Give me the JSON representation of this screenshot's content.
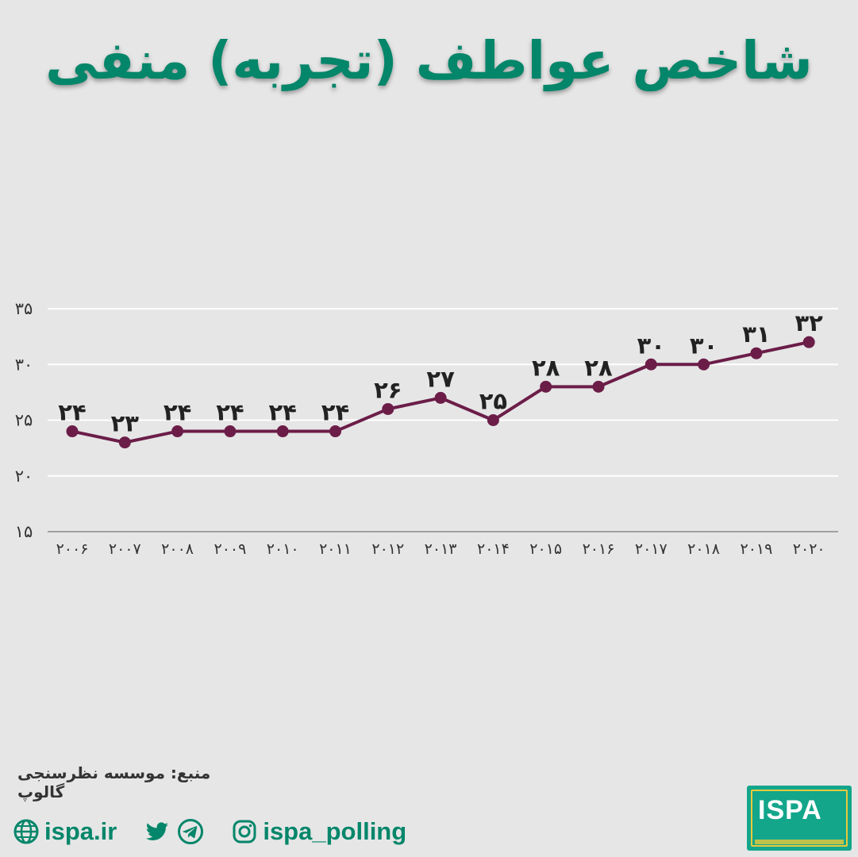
{
  "title": "شاخص عواطف (تجربه) منفی",
  "source": "منبع: موسسه نظرسنجی گالوپ",
  "social": {
    "website": "ispa.ir",
    "handle": "ispa_polling",
    "icons": [
      "globe-icon",
      "twitter-icon",
      "telegram-icon",
      "instagram-icon"
    ]
  },
  "logo": {
    "text": "ISPA"
  },
  "colors": {
    "accent": "#04866a",
    "line": "#6b1d48",
    "background": "#e6e6e6"
  },
  "chart_data": {
    "type": "line",
    "categories": [
      "2006",
      "2007",
      "2008",
      "2009",
      "2010",
      "2011",
      "2012",
      "2013",
      "2014",
      "2015",
      "2016",
      "2017",
      "2018",
      "2019",
      "2020"
    ],
    "category_labels": [
      "۲۰۰۶",
      "۲۰۰۷",
      "۲۰۰۸",
      "۲۰۰۹",
      "۲۰۱۰",
      "۲۰۱۱",
      "۲۰۱۲",
      "۲۰۱۳",
      "۲۰۱۴",
      "۲۰۱۵",
      "۲۰۱۶",
      "۲۰۱۷",
      "۲۰۱۸",
      "۲۰۱۹",
      "۲۰۲۰"
    ],
    "values": [
      24,
      23,
      24,
      24,
      24,
      24,
      26,
      27,
      25,
      28,
      28,
      30,
      30,
      31,
      32
    ],
    "value_labels": [
      "۲۴",
      "۲۳",
      "۲۴",
      "۲۴",
      "۲۴",
      "۲۴",
      "۲۶",
      "۲۷",
      "۲۵",
      "۲۸",
      "۲۸",
      "۳۰",
      "۳۰",
      "۳۱",
      "۳۲"
    ],
    "yticks": [
      15,
      20,
      25,
      30,
      35
    ],
    "ytick_labels": [
      "۱۵",
      "۲۰",
      "۲۵",
      "۳۰",
      "۳۵"
    ],
    "ylim": [
      15,
      35
    ],
    "grid": true
  }
}
